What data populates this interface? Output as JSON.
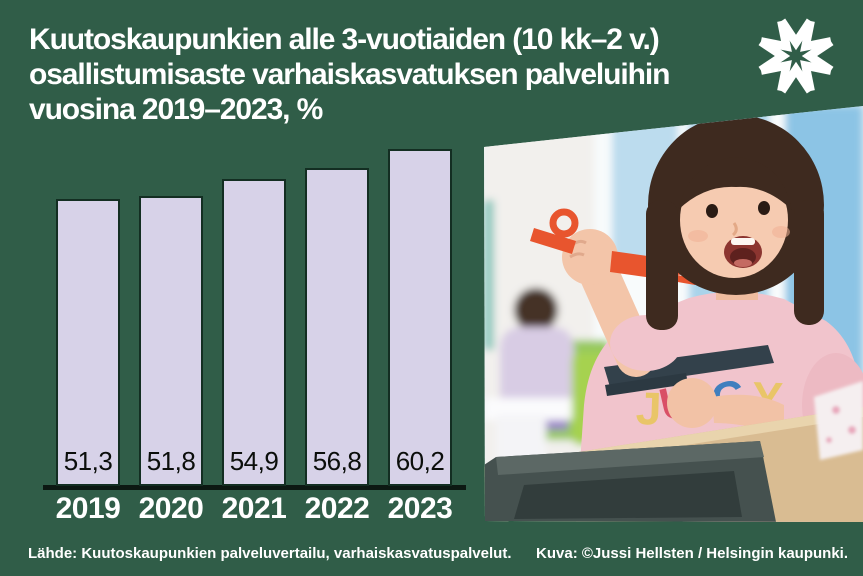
{
  "header": {
    "title_lines": [
      "Kuutoskaupunkien alle 3-vuotiaiden (10 kk–2 v.)",
      "osallistumisaste varhaiskasvatuksen palveluihin",
      "vuosina 2019–2023, %"
    ]
  },
  "logo": {
    "name": "radial-chevron-star-logo",
    "color": "#ffffff"
  },
  "chart_data": {
    "type": "bar",
    "title": "Kuutoskaupunkien alle 3-vuotiaiden (10 kk–2 v.) osallistumisaste varhaiskasvatuksen palveluihin vuosina 2019–2023, %",
    "categories": [
      "2019",
      "2020",
      "2021",
      "2022",
      "2023"
    ],
    "values": [
      51.3,
      51.8,
      54.9,
      56.8,
      60.2
    ],
    "value_labels": [
      "51,3",
      "51,8",
      "54,9",
      "56,8",
      "60,2"
    ],
    "xlabel": "",
    "ylabel": "",
    "ylim": [
      0,
      65
    ],
    "grid": false,
    "legend": false,
    "bar_color": "#d7d2e8",
    "bar_border_color": "#132e22",
    "axis_color": "#0c1812",
    "value_label_position": "inside-bottom",
    "value_label_color": "#0b0e0b",
    "tick_label_color": "#ffffff"
  },
  "photo": {
    "description": "Toddler with dark bobbed hair in a pink JUICY t-shirt holds up an orange fork and a dark tray in a daycare room; another child plays at a small table in the blurred background.",
    "shirt_text": "JUICY"
  },
  "footer": {
    "source": "Lähde: Kuutoskaupunkien palveluvertailu, varhaiskasvatuspalvelut.",
    "credit": "Kuva: ©Jussi Hellsten / Helsingin kaupunki."
  },
  "colors": {
    "background": "#305d48",
    "text": "#ffffff",
    "bar_fill": "#d7d2e8"
  }
}
